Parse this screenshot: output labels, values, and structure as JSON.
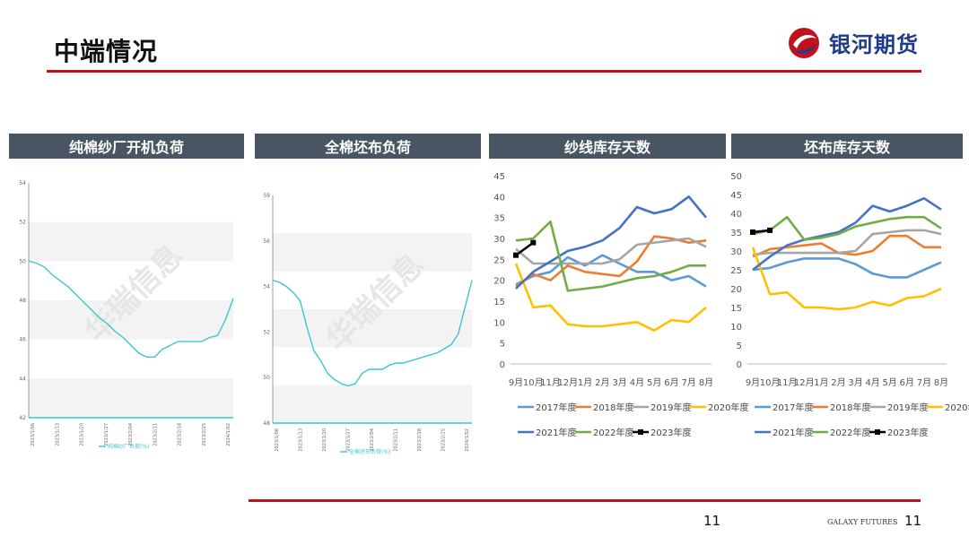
{
  "title": "中端情况",
  "brand": {
    "name": "银河期货",
    "footer": "GALAXY FUTURES",
    "accent": "#c0111c",
    "primary": "#1f3b8a"
  },
  "page_number": "11",
  "page_number_right": "11",
  "panels": [
    {
      "title": "纯棉纱厂开机负荷"
    },
    {
      "title": "全棉坯布负荷"
    },
    {
      "title": "纱线库存天数"
    },
    {
      "title": "坯布库存天数"
    }
  ],
  "chart_data": [
    {
      "type": "line",
      "title": "纯棉纱厂开机负荷",
      "ylim": [
        42,
        54
      ],
      "yticks": [
        "54",
        "52",
        "50",
        "48",
        "46",
        "44",
        "42"
      ],
      "xticks": [
        "2023/1/06",
        "2023/1/13",
        "2023/1/20",
        "2023/1/27",
        "2023/2/04",
        "2023/2/11",
        "2023/2/18",
        "2023/2/25",
        "2024/1/02"
      ],
      "legend": [
        "纯棉纱厂负荷(%)"
      ],
      "color": "#3cc6cf",
      "grid": true,
      "watermark": "华瑞信息",
      "series": [
        {
          "values": [
            50.0,
            49.9,
            49.7,
            49.3,
            49.0,
            48.7,
            48.3,
            47.9,
            47.5,
            47.1,
            46.8,
            46.4,
            46.1,
            45.7,
            45.3,
            45.1,
            45.1,
            45.5,
            45.7,
            45.9,
            45.9,
            45.9,
            45.9,
            46.1,
            46.2,
            47.0,
            48.1
          ]
        }
      ]
    },
    {
      "type": "line",
      "title": "全棉坯布负荷",
      "ylim": [
        48,
        59
      ],
      "yticks": [
        "59",
        "56",
        "54",
        "52",
        "50",
        "48"
      ],
      "xticks": [
        "2023/1/06",
        "2023/1/13",
        "2023/1/20",
        "2023/1/27",
        "2023/2/04",
        "2023/2/11",
        "2023/2/18",
        "2023/2/25",
        "2024/1/02"
      ],
      "legend": [
        "全棉坯布负荷(%)"
      ],
      "color": "#3cc6cf",
      "grid": true,
      "watermark": "华瑞信息",
      "series": [
        {
          "values": [
            54.9,
            54.8,
            54.6,
            54.3,
            53.9,
            52.6,
            51.5,
            51.0,
            50.4,
            50.1,
            49.9,
            49.8,
            49.9,
            50.4,
            50.6,
            50.6,
            50.6,
            50.8,
            50.9,
            50.9,
            51.0,
            51.1,
            51.2,
            51.3,
            51.4,
            51.6,
            51.8,
            52.3,
            53.6,
            54.9
          ]
        }
      ]
    },
    {
      "type": "line",
      "title": "纱线库存天数",
      "ylim": [
        0,
        45
      ],
      "yticks": [
        "0",
        "5",
        "10",
        "15",
        "20",
        "25",
        "30",
        "35",
        "40",
        "45"
      ],
      "categories": [
        "9月",
        "10月",
        "11月",
        "12月",
        "1月",
        "2月",
        "3月",
        "4月",
        "5月",
        "6月",
        "7月",
        "8月"
      ],
      "legend_position": "bottom",
      "series": [
        {
          "name": "2017年度",
          "color": "#5b9bd5",
          "values": [
            19,
            21,
            22,
            25.5,
            23.5,
            26,
            24,
            22,
            22,
            20,
            21,
            18.5
          ]
        },
        {
          "name": "2018年度",
          "color": "#ed7d31",
          "values": [
            18.5,
            21.5,
            20,
            23.5,
            22,
            21.5,
            21,
            24.5,
            30.5,
            30,
            29,
            29.5
          ]
        },
        {
          "name": "2019年度",
          "color": "#a5a5a5",
          "values": [
            27.5,
            24,
            24,
            24,
            24,
            24,
            25,
            28.5,
            29,
            29.5,
            30,
            28
          ]
        },
        {
          "name": "2020年度",
          "color": "#ffc000",
          "values": [
            24,
            13.5,
            14,
            9.5,
            9,
            9,
            9.5,
            10,
            8,
            10.5,
            10,
            13.5
          ]
        },
        {
          "name": "2021年度",
          "color": "#4472c4",
          "values": [
            18,
            22,
            24.5,
            27,
            28,
            29.5,
            32.5,
            37.5,
            36,
            37,
            40,
            35
          ]
        },
        {
          "name": "2022年度",
          "color": "#70ad47",
          "values": [
            29.5,
            30,
            34,
            17.5,
            18,
            18.5,
            19.5,
            20.5,
            21,
            22,
            23.5,
            23.5
          ]
        },
        {
          "name": "2023年度",
          "color": "#000000",
          "values": [
            26,
            29,
            null,
            null,
            null,
            null,
            null,
            null,
            null,
            null,
            null,
            null
          ]
        }
      ]
    },
    {
      "type": "line",
      "title": "坯布库存天数",
      "ylim": [
        0,
        50
      ],
      "yticks": [
        "0",
        "5",
        "10",
        "15",
        "20",
        "25",
        "30",
        "35",
        "40",
        "45",
        "50"
      ],
      "categories": [
        "9月",
        "10月",
        "11月",
        "12月",
        "1月",
        "2月",
        "3月",
        "4月",
        "5月",
        "6月",
        "7月",
        "8月"
      ],
      "legend_position": "bottom",
      "series": [
        {
          "name": "2017年度",
          "color": "#5b9bd5",
          "values": [
            25,
            25.5,
            27,
            28,
            28,
            28,
            26.5,
            24,
            23,
            23,
            25,
            27
          ]
        },
        {
          "name": "2018年度",
          "color": "#ed7d31",
          "values": [
            28.5,
            30.5,
            31,
            31.5,
            32,
            29.5,
            29,
            30,
            34,
            34,
            31,
            31
          ]
        },
        {
          "name": "2019年度",
          "color": "#a5a5a5",
          "values": [
            29,
            29.5,
            29.5,
            29.5,
            29.5,
            29.5,
            30,
            34.5,
            35,
            35.5,
            35.5,
            34.5
          ]
        },
        {
          "name": "2020年度",
          "color": "#ffc000",
          "values": [
            31,
            18.5,
            19,
            15,
            15,
            14.5,
            15,
            16.5,
            15.5,
            17.5,
            18,
            20
          ]
        },
        {
          "name": "2021年度",
          "color": "#4472c4",
          "values": [
            25,
            28.5,
            31.5,
            33,
            34,
            35,
            37.5,
            42,
            40.5,
            42,
            44,
            41
          ]
        },
        {
          "name": "2022年度",
          "color": "#70ad47",
          "values": [
            34.5,
            35.5,
            39,
            33,
            33.5,
            34.5,
            36.5,
            37.5,
            38.5,
            39,
            39,
            36
          ]
        },
        {
          "name": "2023年度",
          "color": "#000000",
          "values": [
            35,
            35.5,
            null,
            null,
            null,
            null,
            null,
            null,
            null,
            null,
            null,
            null
          ]
        }
      ]
    }
  ]
}
